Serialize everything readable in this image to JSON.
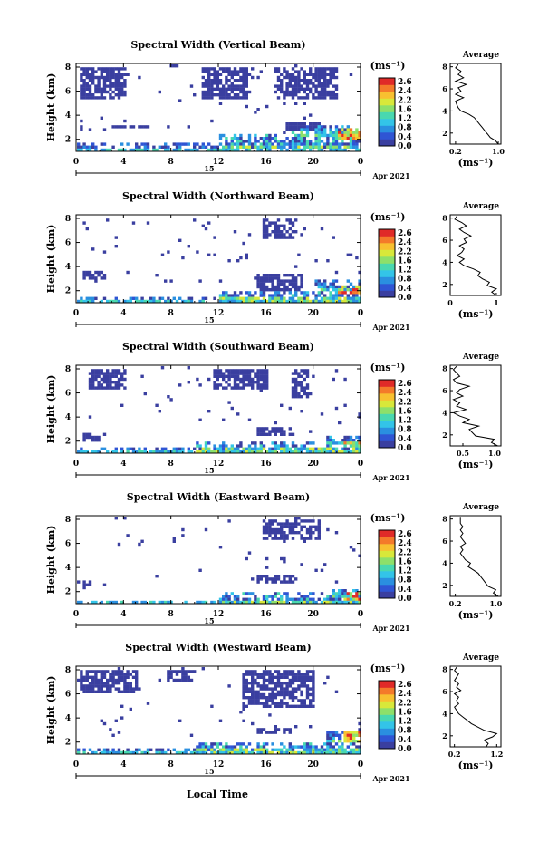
{
  "figure": {
    "x_title": "Local Time",
    "colors": {
      "background": "#ffffff",
      "axis": "#000000",
      "noise": "#3a3fa0"
    }
  },
  "colorbar": {
    "unit": "(ms⁻¹)",
    "scales": [
      [
        "2.6",
        "2.4",
        "2.2",
        "1.6",
        "1.2",
        "0.8",
        "0.4",
        "0.0"
      ],
      [
        "2.6",
        "2.4",
        "2.2",
        "1.6",
        "1.2",
        "0.8",
        "0.4",
        "0.0"
      ],
      [
        "2.6",
        "2.4",
        "2.2",
        "1.6",
        "1.2",
        "0.8",
        "0.4",
        "0.0"
      ],
      [
        "2.6",
        "2.4",
        "2.2",
        "1.6",
        "1.2",
        "0.8",
        "0.4",
        "0.0"
      ],
      [
        "2.6",
        "2.4",
        "2.2",
        "1.6",
        "1.2",
        "0.8",
        "0.4",
        "0.0"
      ]
    ],
    "colors": [
      "#3a3fa0",
      "#2f55d4",
      "#2a8fe0",
      "#33c4e8",
      "#49d8b0",
      "#8de06a",
      "#d8e83a",
      "#f8c030",
      "#f47a2a",
      "#e02a28"
    ]
  },
  "chart_data": [
    {
      "type": "heatmap",
      "title": "Spectral Width (Vertical Beam)",
      "ylabel": "Height (km)",
      "x_ticks": [
        "0",
        "4",
        "8",
        "12",
        "16",
        "20",
        "0"
      ],
      "y_ticks": [
        "2",
        "4",
        "6",
        "8"
      ],
      "day_label": "15",
      "month_label": "Apr 2021",
      "xlim": [
        0,
        24
      ],
      "ylim": [
        1,
        8.3
      ],
      "noise_blocks": [
        [
          0.2,
          4.2,
          5.5,
          8.2
        ],
        [
          10.5,
          14.5,
          5.5,
          8.2
        ],
        [
          16.5,
          22.0,
          5.5,
          8.2
        ],
        [
          17.5,
          20.5,
          2.8,
          3.6
        ],
        [
          3.0,
          6.0,
          3.0,
          3.4
        ]
      ],
      "layers": [
        [
          0,
          24,
          1.0,
          1.8,
          0.35
        ],
        [
          12,
          24,
          1.3,
          2.6,
          0.6
        ],
        [
          18,
          24,
          2.4,
          3.3,
          0.5
        ]
      ],
      "hot_spot": [
        22.0,
        24.0,
        2.0,
        3.0
      ],
      "average": {
        "title": "Average",
        "x_ticks": [
          "0.2",
          "1.0"
        ],
        "xlim": [
          0.1,
          1.05
        ],
        "ylim": [
          1,
          8.3
        ],
        "y_ticks": [
          "2",
          "4",
          "6",
          "8"
        ],
        "xlabel": "(ms⁻¹)",
        "height": [
          1.0,
          1.3,
          1.6,
          1.9,
          2.2,
          2.5,
          2.8,
          3.1,
          3.4,
          3.7,
          4.0,
          4.3,
          4.6,
          4.9,
          5.2,
          5.5,
          5.8,
          6.1,
          6.4,
          6.7,
          7.0,
          7.3,
          7.6,
          7.9,
          8.2
        ],
        "value": [
          1.0,
          0.95,
          0.85,
          0.8,
          0.75,
          0.7,
          0.65,
          0.6,
          0.55,
          0.45,
          0.3,
          0.25,
          0.22,
          0.2,
          0.35,
          0.2,
          0.3,
          0.25,
          0.4,
          0.2,
          0.35,
          0.25,
          0.3,
          0.2,
          0.25
        ]
      }
    },
    {
      "type": "heatmap",
      "title": "Spectral Width (Northward Beam)",
      "ylabel": "Height (km)",
      "x_ticks": [
        "0",
        "4",
        "8",
        "12",
        "16",
        "20",
        "0"
      ],
      "y_ticks": [
        "2",
        "4",
        "6",
        "8"
      ],
      "day_label": "15",
      "month_label": "Apr 2021",
      "xlim": [
        0,
        24
      ],
      "ylim": [
        1,
        8.3
      ],
      "noise_blocks": [
        [
          15.5,
          18.5,
          6.5,
          8.2
        ],
        [
          15.0,
          19.0,
          2.2,
          3.6
        ],
        [
          0.5,
          2.5,
          3.0,
          3.8
        ]
      ],
      "layers": [
        [
          0,
          24,
          1.0,
          1.6,
          0.35
        ],
        [
          12,
          24,
          1.2,
          2.2,
          0.6
        ],
        [
          20,
          24,
          2.0,
          3.0,
          0.5
        ]
      ],
      "hot_spot": [
        22.0,
        24.0,
        1.8,
        2.6
      ],
      "average": {
        "title": "Average",
        "x_ticks": [
          "0",
          "1"
        ],
        "xlim": [
          0,
          1.1
        ],
        "ylim": [
          1,
          8.3
        ],
        "y_ticks": [
          "2",
          "4",
          "6",
          "8"
        ],
        "xlabel": "(ms⁻¹)",
        "height": [
          1.0,
          1.3,
          1.6,
          1.9,
          2.2,
          2.5,
          2.8,
          3.1,
          3.4,
          3.7,
          4.0,
          4.3,
          4.6,
          4.9,
          5.2,
          5.5,
          5.8,
          6.1,
          6.4,
          6.7,
          7.0,
          7.3,
          7.6,
          7.9,
          8.2
        ],
        "value": [
          1.0,
          0.9,
          1.0,
          0.8,
          0.85,
          0.7,
          0.6,
          0.65,
          0.5,
          0.3,
          0.2,
          0.3,
          0.15,
          0.25,
          0.3,
          0.2,
          0.35,
          0.3,
          0.45,
          0.3,
          0.2,
          0.35,
          0.25,
          0.1,
          0.15
        ]
      }
    },
    {
      "type": "heatmap",
      "title": "Spectral Width (Southward Beam)",
      "ylabel": "Height (km)",
      "x_ticks": [
        "0",
        "4",
        "8",
        "12",
        "16",
        "20",
        "0"
      ],
      "y_ticks": [
        "2",
        "4",
        "6",
        "8"
      ],
      "day_label": "15",
      "month_label": "Apr 2021",
      "xlim": [
        0,
        24
      ],
      "ylim": [
        1,
        8.3
      ],
      "noise_blocks": [
        [
          1.0,
          4.0,
          6.5,
          8.2
        ],
        [
          11.5,
          16.0,
          6.5,
          8.2
        ],
        [
          18.0,
          19.5,
          5.8,
          8.0
        ],
        [
          15.0,
          18.0,
          2.6,
          3.2
        ],
        [
          0.5,
          2.0,
          2.0,
          2.8
        ]
      ],
      "layers": [
        [
          0,
          24,
          1.0,
          1.6,
          0.35
        ],
        [
          10,
          24,
          1.2,
          2.2,
          0.6
        ],
        [
          21,
          24,
          1.8,
          2.6,
          0.5
        ]
      ],
      "hot_spot": [
        22.5,
        24.0,
        1.5,
        2.2
      ],
      "average": {
        "title": "Average",
        "x_ticks": [
          "0.5",
          "1.0"
        ],
        "xlim": [
          0.3,
          1.1
        ],
        "ylim": [
          1,
          8.3
        ],
        "y_ticks": [
          "2",
          "4",
          "6",
          "8"
        ],
        "xlabel": "(ms⁻¹)",
        "height": [
          1.0,
          1.3,
          1.6,
          1.9,
          2.2,
          2.5,
          2.8,
          3.1,
          3.4,
          3.7,
          4.0,
          4.3,
          4.6,
          4.9,
          5.2,
          5.5,
          5.8,
          6.1,
          6.4,
          6.7,
          7.0,
          7.3,
          7.6,
          7.9,
          8.2
        ],
        "value": [
          1.05,
          0.95,
          1.0,
          0.7,
          0.65,
          0.6,
          0.75,
          0.5,
          0.6,
          0.45,
          0.35,
          0.55,
          0.4,
          0.45,
          0.35,
          0.5,
          0.4,
          0.45,
          0.6,
          0.4,
          0.35,
          0.45,
          0.4,
          0.35,
          0.4
        ]
      }
    },
    {
      "type": "heatmap",
      "title": "Spectral Width (Eastward Beam)",
      "ylabel": "Height (km)",
      "x_ticks": [
        "0",
        "4",
        "8",
        "12",
        "16",
        "20",
        "0"
      ],
      "y_ticks": [
        "2",
        "4",
        "6",
        "8"
      ],
      "day_label": "15",
      "month_label": "Apr 2021",
      "xlim": [
        0,
        24
      ],
      "ylim": [
        1,
        8.3
      ],
      "noise_blocks": [
        [
          15.5,
          20.5,
          6.5,
          8.2
        ],
        [
          15.0,
          18.5,
          2.8,
          3.6
        ],
        [
          0.5,
          1.5,
          2.4,
          3.0
        ]
      ],
      "layers": [
        [
          0,
          24,
          1.0,
          1.4,
          0.35
        ],
        [
          12,
          24,
          1.1,
          2.0,
          0.6
        ],
        [
          21,
          24,
          1.6,
          2.4,
          0.5
        ]
      ],
      "hot_spot": [
        22.5,
        24.0,
        1.4,
        2.0
      ],
      "average": {
        "title": "Average",
        "x_ticks": [
          "0.2",
          "1.0"
        ],
        "xlim": [
          0.1,
          1.1
        ],
        "ylim": [
          1,
          8.3
        ],
        "y_ticks": [
          "2",
          "4",
          "6",
          "8"
        ],
        "xlabel": "(ms⁻¹)",
        "height": [
          1.0,
          1.3,
          1.6,
          1.9,
          2.2,
          2.5,
          2.8,
          3.1,
          3.4,
          3.7,
          4.0,
          4.3,
          4.6,
          4.9,
          5.2,
          5.5,
          5.8,
          6.1,
          6.4,
          6.7,
          7.0,
          7.3,
          7.6,
          7.9,
          8.2
        ],
        "value": [
          1.05,
          0.95,
          1.0,
          0.85,
          0.8,
          0.75,
          0.7,
          0.65,
          0.55,
          0.45,
          0.5,
          0.4,
          0.35,
          0.3,
          0.35,
          0.3,
          0.4,
          0.35,
          0.3,
          0.35,
          0.3,
          0.35,
          0.3,
          0.3,
          0.3
        ]
      }
    },
    {
      "type": "heatmap",
      "title": "Spectral Width (Westward Beam)",
      "ylabel": "Height (km)",
      "x_ticks": [
        "0",
        "4",
        "8",
        "12",
        "16",
        "20",
        "0"
      ],
      "y_ticks": [
        "2",
        "4",
        "6",
        "8"
      ],
      "day_label": "15",
      "month_label": "Apr 2021",
      "xlim": [
        0,
        24
      ],
      "ylim": [
        1,
        8.3
      ],
      "noise_blocks": [
        [
          0.2,
          5.0,
          6.2,
          8.2
        ],
        [
          14.0,
          20.0,
          5.0,
          8.2
        ],
        [
          15.0,
          18.0,
          2.8,
          3.4
        ],
        [
          7.5,
          10.0,
          7.2,
          8.0
        ]
      ],
      "layers": [
        [
          0,
          24,
          1.0,
          1.7,
          0.35
        ],
        [
          10,
          24,
          1.2,
          2.2,
          0.6
        ],
        [
          21,
          24,
          2.0,
          3.0,
          0.5
        ]
      ],
      "hot_spot": [
        22.5,
        24.0,
        2.0,
        3.0
      ],
      "average": {
        "title": "Average",
        "x_ticks": [
          "0.2",
          "1.2"
        ],
        "xlim": [
          0.1,
          1.3
        ],
        "ylim": [
          1,
          8.3
        ],
        "y_ticks": [
          "2",
          "4",
          "6",
          "8"
        ],
        "xlabel": "(ms⁻¹)",
        "height": [
          1.0,
          1.3,
          1.6,
          1.9,
          2.2,
          2.5,
          2.8,
          3.1,
          3.4,
          3.7,
          4.0,
          4.3,
          4.6,
          4.9,
          5.2,
          5.5,
          5.8,
          6.1,
          6.4,
          6.7,
          7.0,
          7.3,
          7.6,
          7.9,
          8.2
        ],
        "value": [
          0.95,
          1.0,
          0.9,
          1.1,
          1.2,
          0.9,
          0.75,
          0.6,
          0.5,
          0.4,
          0.3,
          0.25,
          0.2,
          0.3,
          0.25,
          0.3,
          0.2,
          0.35,
          0.25,
          0.3,
          0.2,
          0.25,
          0.3,
          0.2,
          0.25
        ]
      }
    }
  ]
}
